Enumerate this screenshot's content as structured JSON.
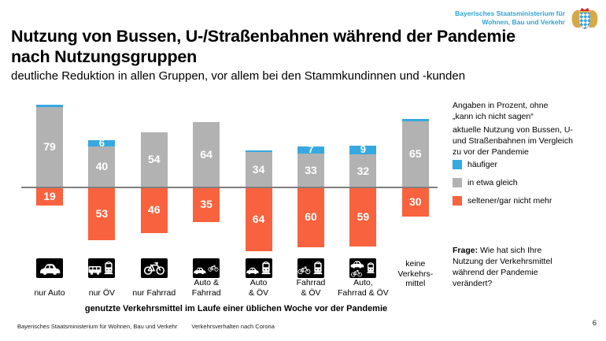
{
  "header": {
    "ministry_line1": "Bayerisches Staatsministerium für",
    "ministry_line2": "Wohnen, Bau und Verkehr"
  },
  "title": {
    "line1": "Nutzung von Bussen, U-/Straßenbahnen während der Pandemie",
    "line2": "nach Nutzungsgruppen",
    "subtitle": "deutliche Reduktion in allen Gruppen, vor allem bei den Stammkundinnen und -kunden"
  },
  "notes": {
    "percent": "Angaben in Prozent, ohne „kann ich nicht sagen“",
    "context": "aktuelle Nutzung von Bussen, U- und Straßenbahnen im Vergleich zu vor der Pandemie"
  },
  "question": {
    "label": "Frage:",
    "text": "Wie hat sich Ihre Nutzung der Verkehrsmittel während der Pandemie verändert?"
  },
  "chart_data": {
    "type": "bar",
    "stacked": true,
    "diverging": "häufiger and in etwa gleich above zero line, seltener/gar nicht mehr below",
    "unit": "Prozent",
    "categories": [
      "nur Auto",
      "nur ÖV",
      "nur Fahrrad",
      "Auto & Fahrrad",
      "Auto & ÖV",
      "Fahrrad & ÖV",
      "Auto, Fahrrad & ÖV",
      "keine Verkehrsmittel"
    ],
    "category_lines": [
      [
        "nur Auto"
      ],
      [
        "nur ÖV"
      ],
      [
        "nur Fahrrad"
      ],
      [
        "Auto &",
        "Fahrrad"
      ],
      [
        "Auto",
        "& ÖV"
      ],
      [
        "Fahrrad",
        "& ÖV"
      ],
      [
        "Auto,",
        "Fahrrad & ÖV"
      ],
      [
        "keine",
        "Verkehrs-",
        "mittel"
      ]
    ],
    "icons": [
      [
        "car"
      ],
      [
        "bus",
        "tram"
      ],
      [
        "bike"
      ],
      [
        "car",
        "bike"
      ],
      [
        "car",
        "tram"
      ],
      [
        "bike",
        "tram"
      ],
      [
        "car",
        "bike",
        "tram"
      ],
      []
    ],
    "series": [
      {
        "name": "häufiger",
        "color": "#36a9e1",
        "values": [
          2,
          6,
          0,
          0,
          2,
          7,
          9,
          2
        ],
        "labels": [
          "",
          "6",
          "",
          "",
          "",
          "7",
          "9",
          ""
        ]
      },
      {
        "name": "in etwa gleich",
        "color": "#b2b2b2",
        "values": [
          79,
          40,
          54,
          64,
          34,
          33,
          32,
          65
        ],
        "labels": [
          "79",
          "40",
          "54",
          "64",
          "34",
          "33",
          "32",
          "65"
        ]
      },
      {
        "name": "seltener/gar nicht mehr",
        "color": "#f9623e",
        "values": [
          19,
          53,
          46,
          35,
          64,
          60,
          59,
          30
        ],
        "labels": [
          "19",
          "53",
          "46",
          "35",
          "64",
          "60",
          "59",
          "30"
        ]
      }
    ],
    "xlabel": "genutzte Verkehrsmittel im Laufe einer üblichen Woche vor der Pandemie",
    "legend_position": "right"
  },
  "footer": {
    "ministry": "Bayerisches Staatsministerium für Wohnen, Bau und Verkehr",
    "topic": "Verkehrsverhalten nach Corona",
    "page": "6"
  }
}
